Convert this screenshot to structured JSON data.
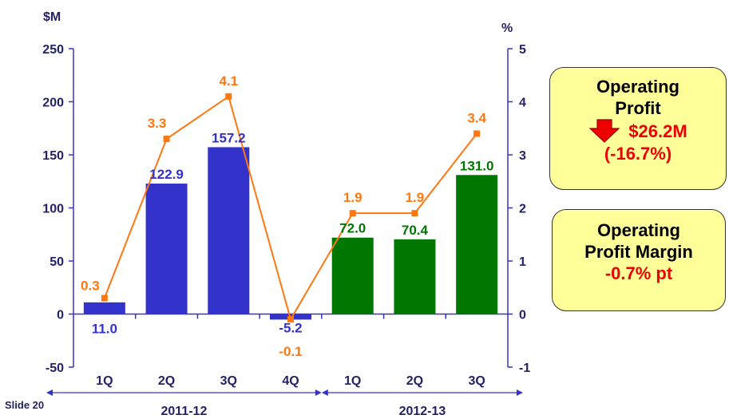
{
  "chart_data": {
    "type": "bar",
    "left_axis_unit": "$M",
    "right_axis_unit": "%",
    "categories": [
      "1Q",
      "2Q",
      "3Q",
      "4Q",
      "1Q",
      "2Q",
      "3Q"
    ],
    "groups": [
      {
        "label": "2011-12",
        "categories": [
          "1Q",
          "2Q",
          "3Q",
          "4Q"
        ]
      },
      {
        "label": "2012-13",
        "categories": [
          "1Q",
          "2Q",
          "3Q"
        ]
      }
    ],
    "series": [
      {
        "type": "bar",
        "axis": "left",
        "values": [
          11.0,
          122.9,
          157.2,
          -5.2,
          72.0,
          70.4,
          131.0
        ],
        "labels": [
          "11.0",
          "122.9",
          "157.2",
          "-5.2",
          "72.0",
          "70.4",
          "131.0"
        ],
        "colors": [
          "#3333cc",
          "#3333cc",
          "#3333cc",
          "#3333cc",
          "#007700",
          "#007700",
          "#007700"
        ]
      },
      {
        "type": "line",
        "axis": "right",
        "values": [
          0.3,
          3.3,
          4.1,
          -0.1,
          1.9,
          1.9,
          3.4
        ],
        "labels": [
          "0.3",
          "3.3",
          "4.1",
          "-0.1",
          "1.9",
          "1.9",
          "3.4"
        ],
        "color": "#ff7711"
      }
    ],
    "y_left": {
      "min": -50,
      "max": 250,
      "ticks": [
        "-50",
        "0",
        "50",
        "100",
        "150",
        "200",
        "250"
      ]
    },
    "y_right": {
      "min": -1,
      "max": 5,
      "ticks": [
        "-1",
        "0",
        "1",
        "2",
        "3",
        "4",
        "5"
      ]
    }
  },
  "callouts": {
    "operating_profit": {
      "line1": "Operating",
      "line2": "Profit",
      "change": "$26.2M",
      "pct": "(-16.7%)",
      "icon": "red-down-arrow-icon"
    },
    "operating_margin": {
      "line1": "Operating",
      "line2": "Profit Margin",
      "change": "-0.7% pt"
    }
  },
  "footer": {
    "slide": "Slide 20"
  },
  "colors": {
    "axis": "#3333cc",
    "bar_2011": "#3333cc",
    "bar_2012": "#007700",
    "line": "#ff7711",
    "callout_bg": "#ffff99"
  }
}
